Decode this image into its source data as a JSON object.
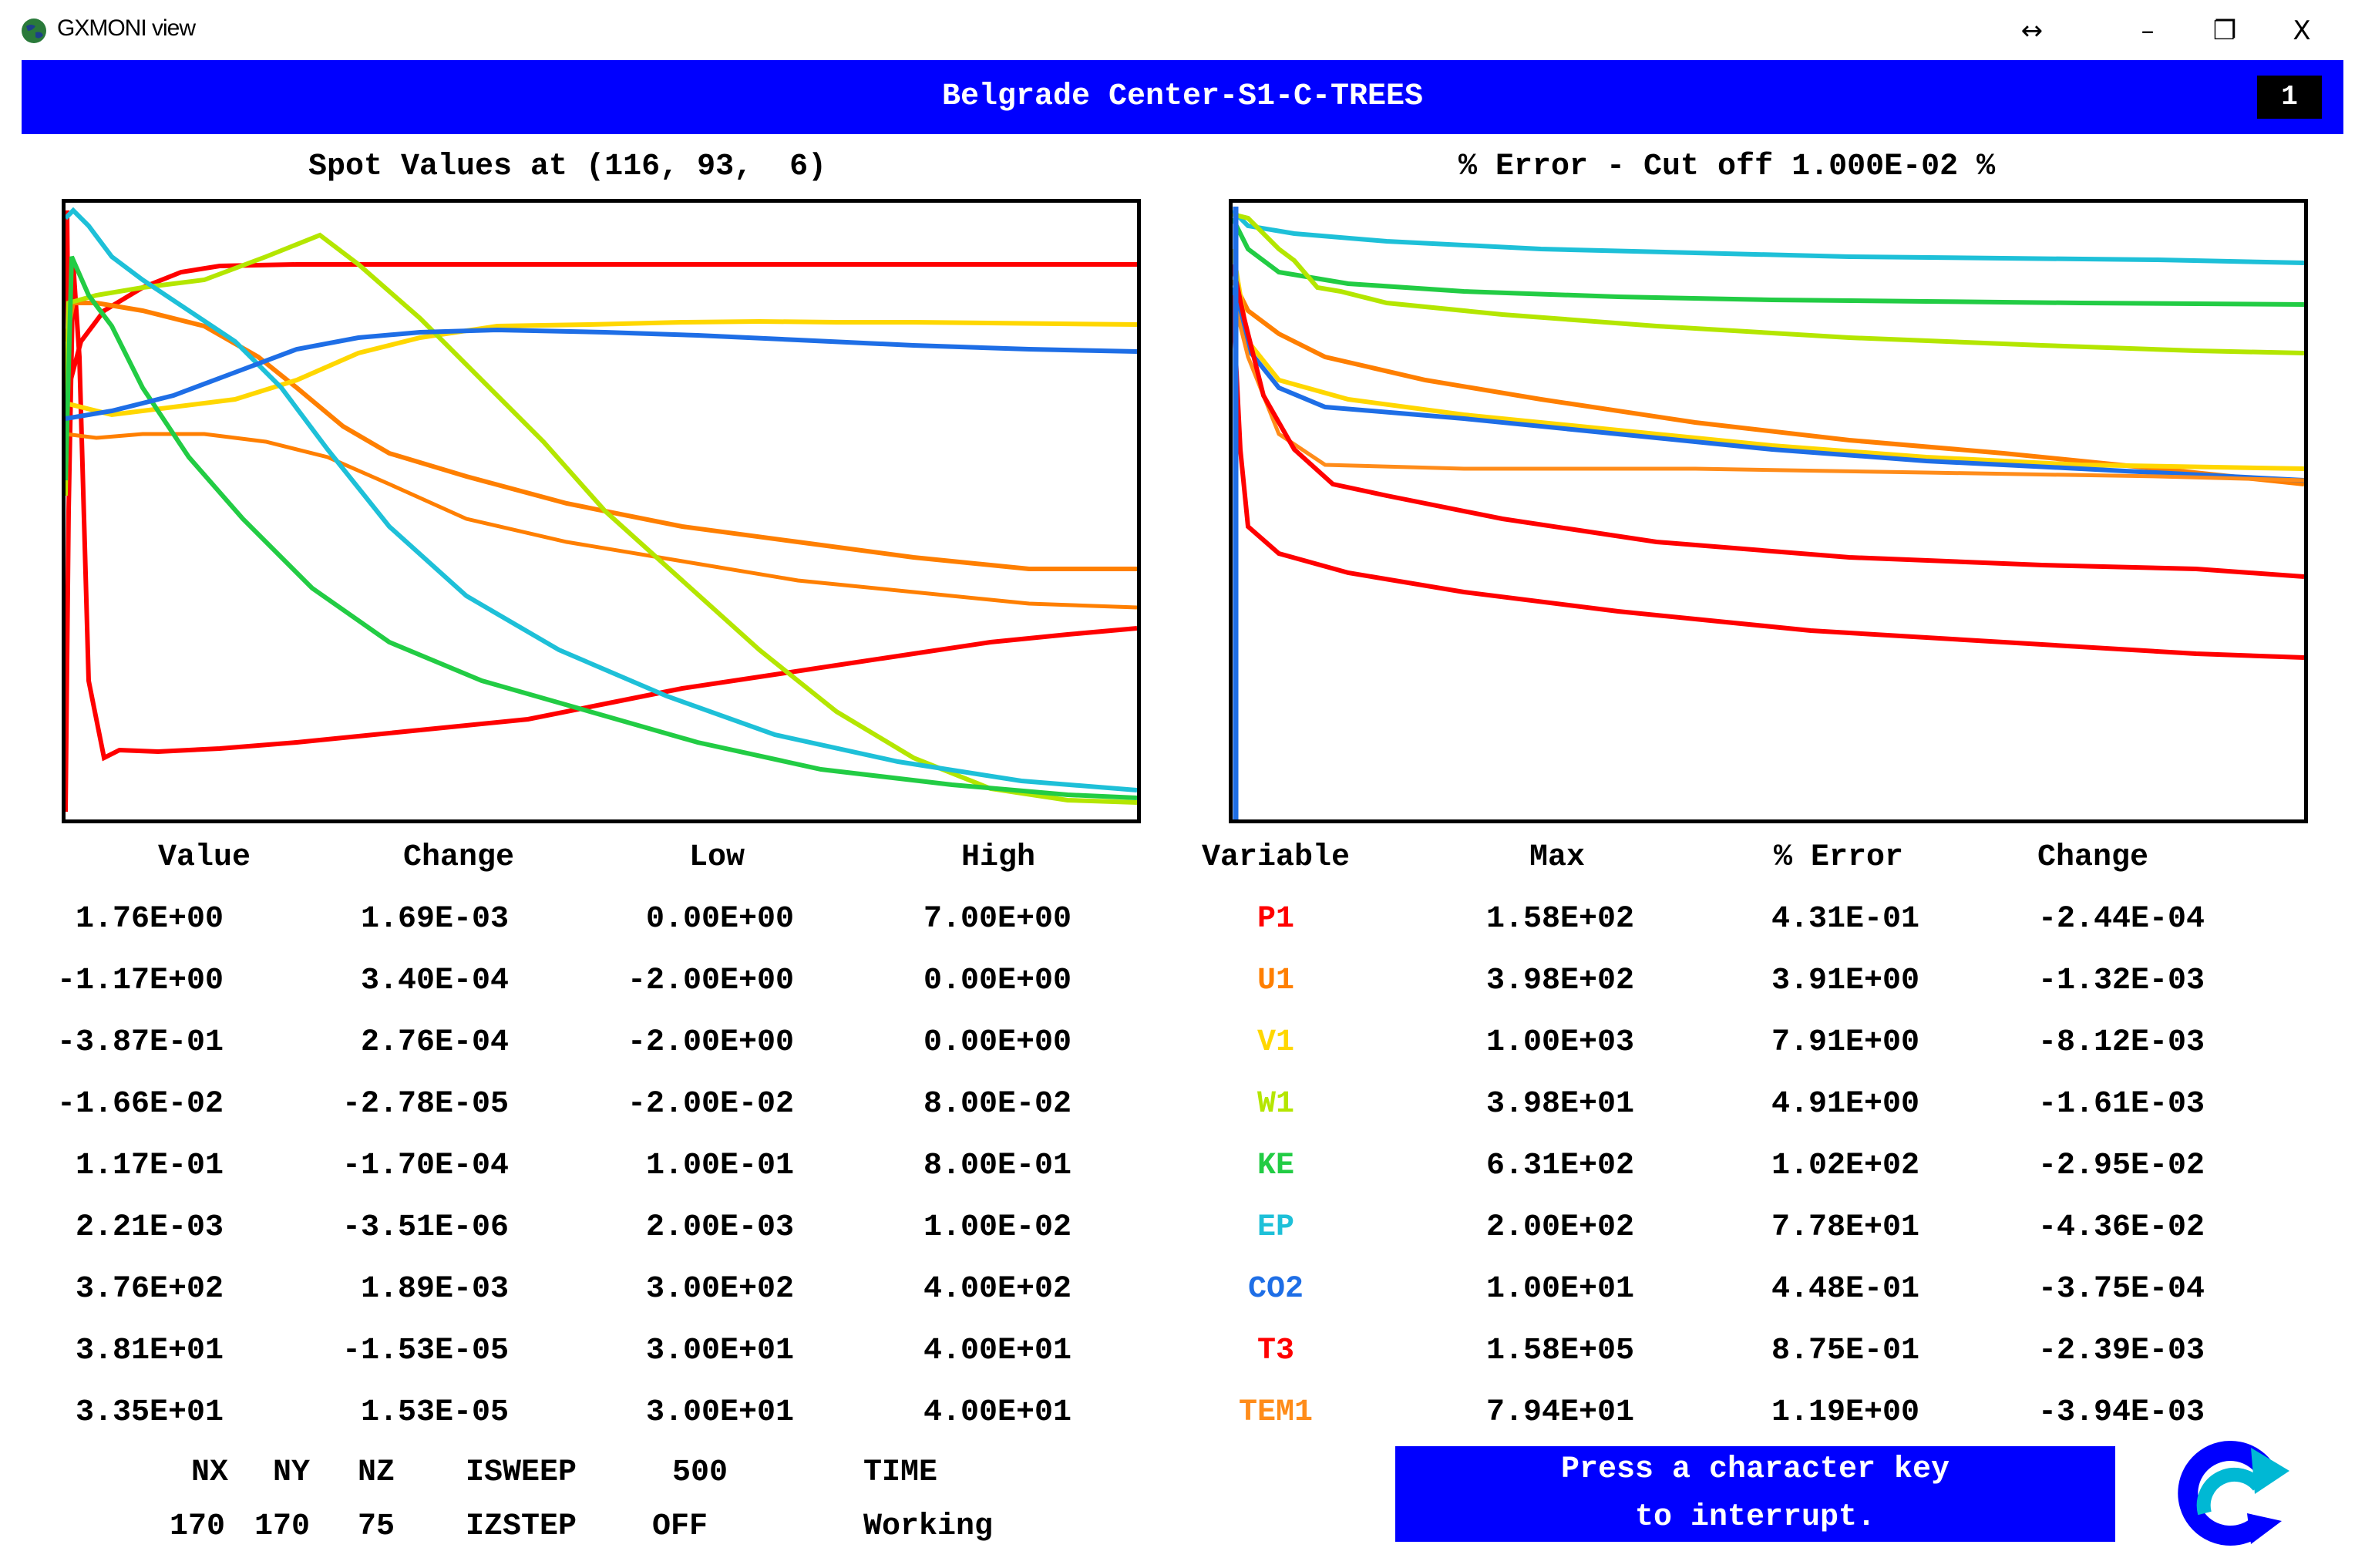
{
  "window": {
    "title": "GXMONI view",
    "controls": {
      "resize": "↔",
      "minimize": "–",
      "restore": "❐",
      "close": "X"
    }
  },
  "banner": {
    "title": "Belgrade Center-S1-C-TREES",
    "number": "1"
  },
  "left_plot": {
    "title": "Spot Values at (116, 93,  6)"
  },
  "right_plot": {
    "title": "% Error - Cut off 1.000E-02 %"
  },
  "colors": {
    "P1": "#ff0000",
    "U1": "#ff7f00",
    "V1": "#ffd700",
    "W1": "#b4e600",
    "KE": "#22cc44",
    "EP": "#1ec0d8",
    "CO2": "#1e6ee6",
    "T3": "#ff0000",
    "TEM1": "#ff8c1a",
    "banner": "#0000ff"
  },
  "table": {
    "headers": [
      "Value",
      "Change",
      "Low",
      "High",
      "Variable",
      "Max",
      "% Error",
      "Change"
    ],
    "rows": [
      {
        "value": "1.76E+00",
        "change": "1.69E-03",
        "low": "0.00E+00",
        "high": "7.00E+00",
        "variable": "P1",
        "max": "1.58E+02",
        "error": "4.31E-01",
        "change2": "-2.44E-04"
      },
      {
        "value": "-1.17E+00",
        "change": "3.40E-04",
        "low": "-2.00E+00",
        "high": "0.00E+00",
        "variable": "U1",
        "max": "3.98E+02",
        "error": "3.91E+00",
        "change2": "-1.32E-03"
      },
      {
        "value": "-3.87E-01",
        "change": "2.76E-04",
        "low": "-2.00E+00",
        "high": "0.00E+00",
        "variable": "V1",
        "max": "1.00E+03",
        "error": "7.91E+00",
        "change2": "-8.12E-03"
      },
      {
        "value": "-1.66E-02",
        "change": "-2.78E-05",
        "low": "-2.00E-02",
        "high": "8.00E-02",
        "variable": "W1",
        "max": "3.98E+01",
        "error": "4.91E+00",
        "change2": "-1.61E-03"
      },
      {
        "value": "1.17E-01",
        "change": "-1.70E-04",
        "low": "1.00E-01",
        "high": "8.00E-01",
        "variable": "KE",
        "max": "6.31E+02",
        "error": "1.02E+02",
        "change2": "-2.95E-02"
      },
      {
        "value": "2.21E-03",
        "change": "-3.51E-06",
        "low": "2.00E-03",
        "high": "1.00E-02",
        "variable": "EP",
        "max": "2.00E+02",
        "error": "7.78E+01",
        "change2": "-4.36E-02"
      },
      {
        "value": "3.76E+02",
        "change": "1.89E-03",
        "low": "3.00E+02",
        "high": "4.00E+02",
        "variable": "CO2",
        "max": "1.00E+01",
        "error": "4.48E-01",
        "change2": "-3.75E-04"
      },
      {
        "value": "3.81E+01",
        "change": "-1.53E-05",
        "low": "3.00E+01",
        "high": "4.00E+01",
        "variable": "T3",
        "max": "1.58E+05",
        "error": "8.75E-01",
        "change2": "-2.39E-03"
      },
      {
        "value": "3.35E+01",
        "change": "1.53E-05",
        "low": "3.00E+01",
        "high": "4.00E+01",
        "variable": "TEM1",
        "max": "7.94E+01",
        "error": "1.19E+00",
        "change2": "-3.94E-03"
      }
    ]
  },
  "footer": {
    "nx_label": "NX",
    "ny_label": "NY",
    "nz_label": "NZ",
    "nx": "170",
    "ny": "170",
    "nz": "75",
    "isweep_label": "ISWEEP",
    "isweep": "500",
    "izstep_label": "IZSTEP",
    "izstep": "OFF",
    "time_label": "TIME",
    "time": "Working"
  },
  "status": {
    "line1": "Press a character key",
    "line2": "to interrupt."
  },
  "icons": {
    "app": "globe-icon",
    "refresh": "refresh-icon"
  }
}
